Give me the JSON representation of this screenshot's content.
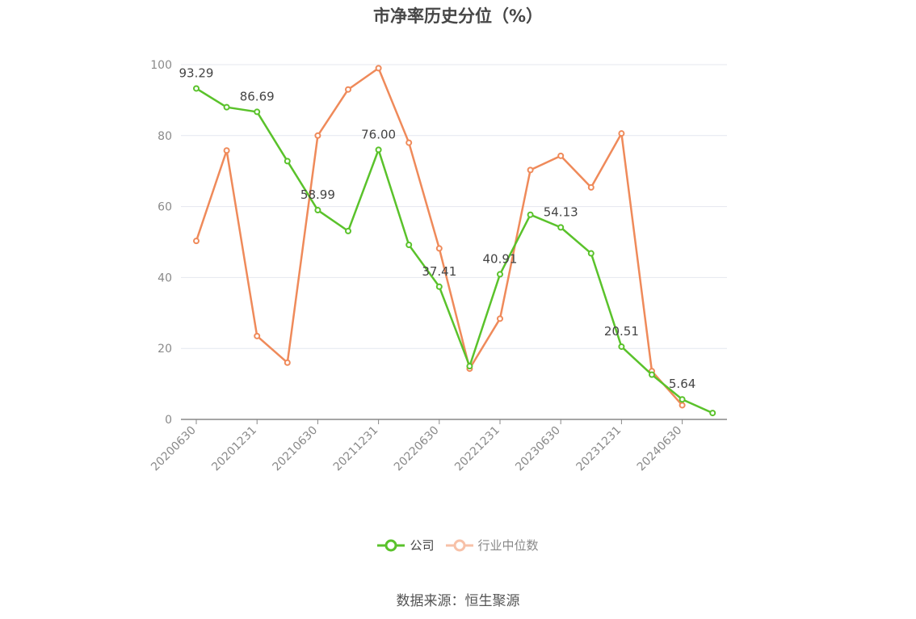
{
  "chart_data": {
    "type": "line",
    "title": "市净率历史分位（%）",
    "ylim": [
      0,
      100
    ],
    "yticks": [
      0,
      20,
      40,
      60,
      80,
      100
    ],
    "x": [
      "20200630",
      "20200930",
      "20201231",
      "20210331",
      "20210630",
      "20210930",
      "20211231",
      "20220331",
      "20220630",
      "20220930",
      "20221231",
      "20230331",
      "20230630",
      "20230930",
      "20231231",
      "20240331",
      "20240630",
      "20240930"
    ],
    "x_tick_labels": [
      "20200630",
      "20201231",
      "20210630",
      "20211231",
      "20220630",
      "20221231",
      "20230630",
      "20231231",
      "20240630"
    ],
    "series": [
      {
        "name": "公司",
        "color": "#5ac22b",
        "values": [
          93.29,
          88.0,
          86.69,
          72.8,
          58.99,
          53.1,
          76.0,
          49.2,
          37.41,
          15.0,
          40.91,
          57.7,
          54.13,
          46.8,
          20.51,
          12.6,
          5.64,
          1.8
        ],
        "labels": {
          "0": "93.29",
          "2": "86.69",
          "4": "58.99",
          "6": "76.00",
          "8": "37.41",
          "10": "40.91",
          "12": "54.13",
          "14": "20.51",
          "16": "5.64"
        }
      },
      {
        "name": "行业中位数",
        "color": "#ef8a5a",
        "values": [
          50.3,
          75.8,
          23.5,
          16.0,
          80.0,
          93.0,
          99.0,
          78.0,
          48.2,
          14.3,
          28.4,
          70.3,
          74.3,
          65.4,
          80.6,
          13.6,
          4.0,
          null
        ]
      }
    ],
    "legend_position": "bottom-center",
    "grid": true
  },
  "source_text": "数据来源：恒生聚源"
}
